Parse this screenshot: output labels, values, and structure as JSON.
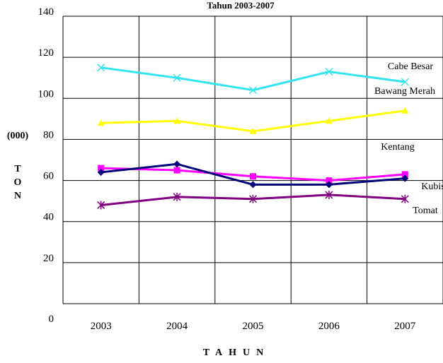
{
  "chart_data": {
    "type": "line",
    "title": "Tahun 2003-2007",
    "categories": [
      "2003",
      "2004",
      "2005",
      "2006",
      "2007"
    ],
    "y_ticks": [
      "0",
      "20",
      "40",
      "60",
      "80",
      "100",
      "120",
      "140"
    ],
    "ylim": [
      0,
      140
    ],
    "grid": true,
    "ylabel_top": "(000)",
    "ylabel": "TON",
    "xlabel": "TAHUN",
    "series": [
      {
        "name": "Cabe Besar",
        "values": [
          115,
          110,
          104,
          113,
          108
        ],
        "color": "#33e5f0",
        "marker": "x"
      },
      {
        "name": "Bawang Merah",
        "values": [
          88,
          89,
          84,
          89,
          94
        ],
        "color": "#ffff00",
        "marker": "triangle"
      },
      {
        "name": "Kentang",
        "values": [
          66,
          65,
          62,
          60,
          63
        ],
        "color": "#ff00ff",
        "marker": "square"
      },
      {
        "name": "Kubis",
        "values": [
          64,
          68,
          58,
          58,
          61
        ],
        "color": "#00007a",
        "marker": "diamond"
      },
      {
        "name": "Tomat",
        "values": [
          48,
          52,
          51,
          53,
          51
        ],
        "color": "#800080",
        "marker": "star"
      }
    ]
  }
}
